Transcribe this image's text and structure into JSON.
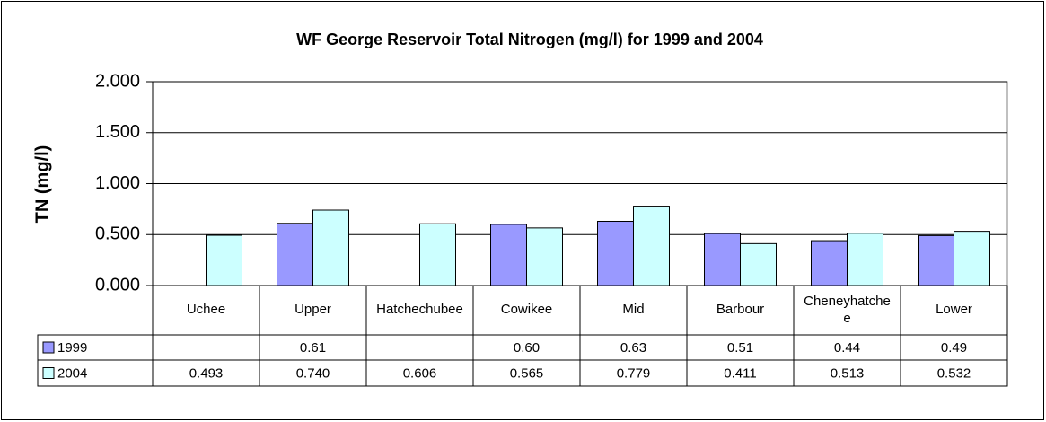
{
  "chart_data": {
    "type": "bar",
    "title": "WF George Reservoir Total Nitrogen (mg/l) for 1999 and 2004",
    "y_label": "TN (mg/l)",
    "categories": [
      "Uchee",
      "Upper",
      "Hatchechubee",
      "Cowikee",
      "Mid",
      "Barbour",
      "Cheneyhatchee",
      "Lower"
    ],
    "series": [
      {
        "name": "1999",
        "color": "#9999ff",
        "values": [
          null,
          0.61,
          null,
          0.6,
          0.63,
          0.51,
          0.44,
          0.49
        ],
        "value_labels": [
          null,
          "0.61",
          null,
          "0.60",
          "0.63",
          "0.51",
          "0.44",
          "0.49"
        ]
      },
      {
        "name": "2004",
        "color": "#ccffff",
        "values": [
          0.493,
          0.74,
          0.606,
          0.565,
          0.779,
          0.411,
          0.513,
          0.532
        ],
        "value_labels": [
          "0.493",
          "0.740",
          "0.606",
          "0.565",
          "0.779",
          "0.411",
          "0.513",
          "0.532"
        ]
      }
    ],
    "ylim": [
      0,
      2
    ],
    "yticks": [
      {
        "value": 0,
        "label": "0.000"
      },
      {
        "value": 0.5,
        "label": "0.500"
      },
      {
        "value": 1,
        "label": "1.000"
      },
      {
        "value": 1.5,
        "label": "1.500"
      },
      {
        "value": 2,
        "label": "2.000"
      }
    ],
    "grid": true
  }
}
